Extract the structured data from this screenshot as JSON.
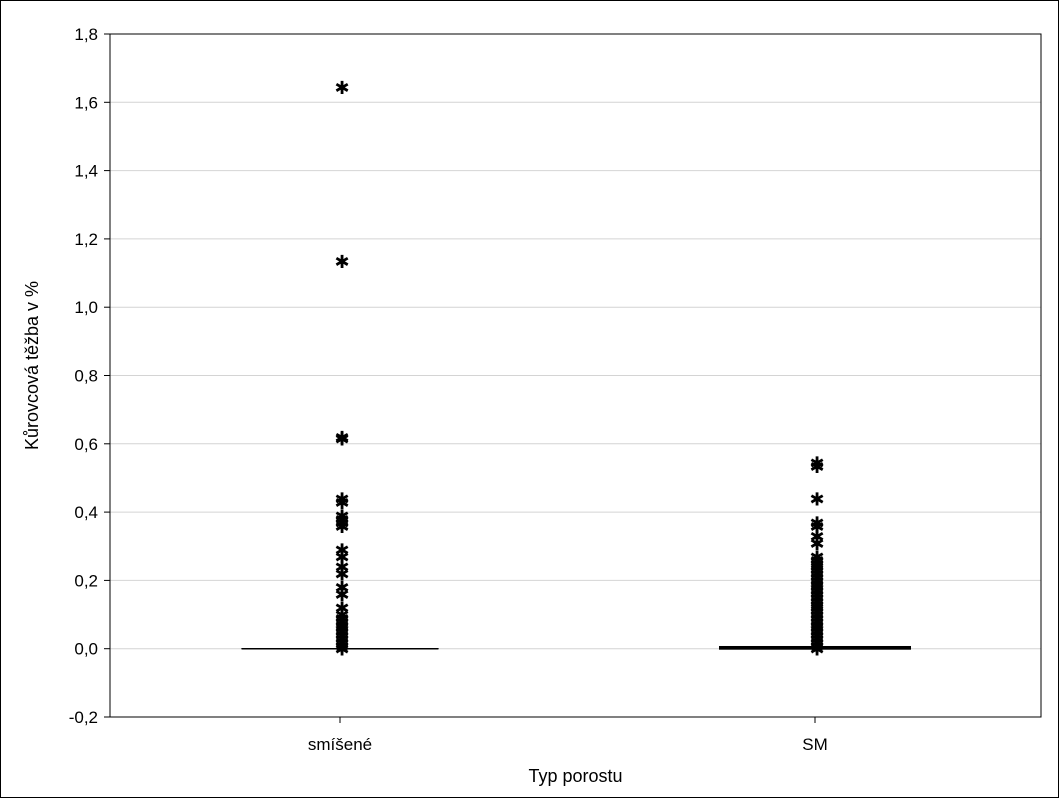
{
  "chart_data": {
    "type": "boxplot",
    "title": "",
    "xlabel": "Typ porostu",
    "ylabel": "Kůrovcová těžba v %",
    "ylim": [
      -0.2,
      1.8
    ],
    "yticks": [
      "-0,2",
      "0,0",
      "0,2",
      "0,4",
      "0,6",
      "0,8",
      "1,0",
      "1,2",
      "1,4",
      "1,6",
      "1,8"
    ],
    "ytick_values": [
      -0.2,
      0.0,
      0.2,
      0.4,
      0.6,
      0.8,
      1.0,
      1.2,
      1.4,
      1.6,
      1.8
    ],
    "grid": true,
    "categories": [
      "smíšené",
      "SM"
    ],
    "series": [
      {
        "category": "smíšené",
        "median": 0.0,
        "q1": 0.0,
        "q3": 0.0,
        "whisker_low": 0.0,
        "whisker_high": 0.0,
        "outliers": [
          1.645,
          1.135,
          0.62,
          0.615,
          0.44,
          0.43,
          0.39,
          0.38,
          0.37,
          0.36,
          0.29,
          0.27,
          0.24,
          0.22,
          0.18,
          0.16,
          0.12,
          0.1,
          0.09,
          0.08,
          0.07,
          0.06,
          0.05,
          0.04,
          0.03,
          0.02,
          0.01,
          0.0
        ]
      },
      {
        "category": "SM",
        "median": 0.0,
        "q1": 0.0,
        "q3": 0.005,
        "whisker_low": 0.0,
        "whisker_high": 0.005,
        "outliers": [
          0.545,
          0.535,
          0.44,
          0.37,
          0.36,
          0.33,
          0.31,
          0.27,
          0.26,
          0.25,
          0.24,
          0.23,
          0.22,
          0.21,
          0.2,
          0.19,
          0.18,
          0.17,
          0.16,
          0.15,
          0.14,
          0.13,
          0.12,
          0.11,
          0.1,
          0.09,
          0.08,
          0.07,
          0.06,
          0.05,
          0.04,
          0.03,
          0.02,
          0.01,
          0.0
        ]
      }
    ],
    "marker_symbol": "✱"
  }
}
